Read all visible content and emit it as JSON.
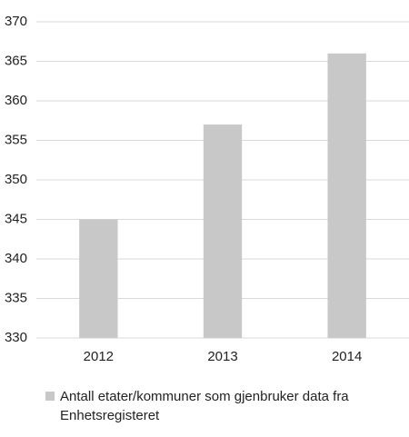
{
  "chart_data": {
    "type": "bar",
    "categories": [
      "2012",
      "2013",
      "2014"
    ],
    "series": [
      {
        "name": "Antall etater/kommuner som gjenbruker data fra Enhetsregisteret",
        "color": "#c8c8c8",
        "values": [
          345,
          357,
          366
        ]
      }
    ],
    "ylim": [
      330,
      370
    ],
    "yticks": [
      330,
      335,
      340,
      345,
      350,
      355,
      360,
      365,
      370
    ],
    "grid": true,
    "legend": "bottom"
  }
}
